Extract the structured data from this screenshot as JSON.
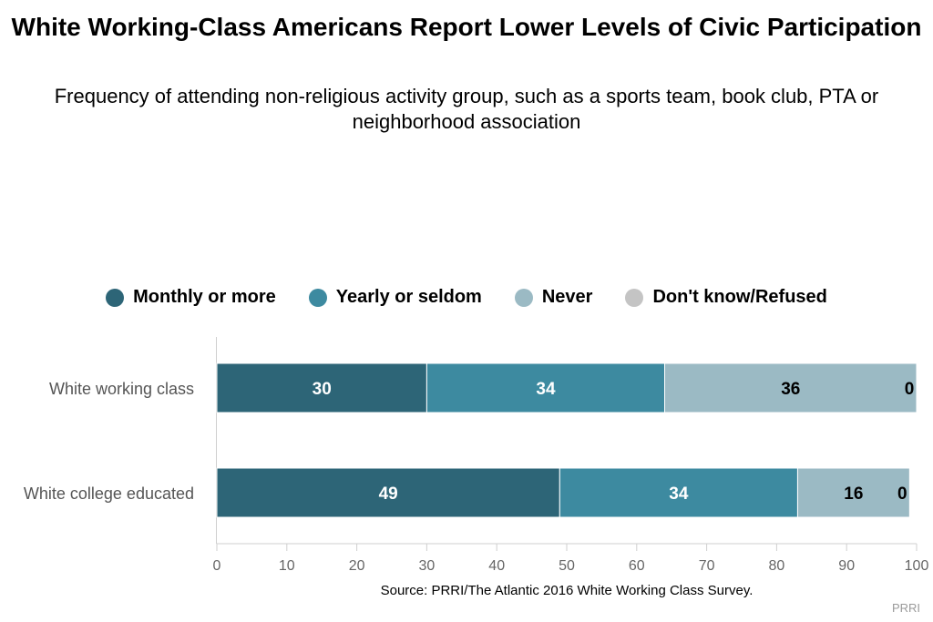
{
  "chart_data": {
    "type": "bar",
    "orientation": "horizontal",
    "stacked": true,
    "title": "White Working-Class Americans Report Lower Levels of Civic Participation",
    "subtitle": "Frequency of attending non-religious activity group, such as a sports team, book club, PTA or neighborhood association",
    "categories": [
      "White working class",
      "White college educated"
    ],
    "series": [
      {
        "name": "Monthly or more",
        "values": [
          30,
          49
        ],
        "color": "#2d6577",
        "label_color": "#ffffff"
      },
      {
        "name": "Yearly or seldom",
        "values": [
          34,
          34
        ],
        "color": "#3d8aa0",
        "label_color": "#ffffff"
      },
      {
        "name": "Never",
        "values": [
          36,
          16
        ],
        "color": "#9bbac4",
        "label_color": "#000000"
      },
      {
        "name": "Don't know/Refused",
        "values": [
          0,
          0
        ],
        "color": "#c4c4c4",
        "label_color": "#000000"
      }
    ],
    "xlim": [
      0,
      100
    ],
    "xticks": [
      0,
      10,
      20,
      30,
      40,
      50,
      60,
      70,
      80,
      90,
      100
    ],
    "grid": false,
    "legend_position": "top"
  },
  "source": "Source: PRRI/The Atlantic 2016 White Working Class Survey.",
  "credit": "PRRI"
}
